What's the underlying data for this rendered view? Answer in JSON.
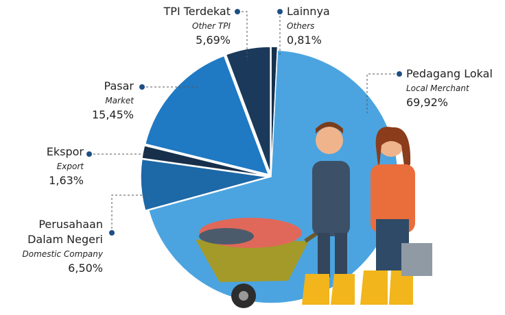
{
  "chart_data": {
    "type": "pie",
    "categories": [
      "Lainnya",
      "Pedagang Lokal",
      "Perusahaan Dalam Negeri",
      "Ekspor",
      "Pasar",
      "TPI Terdekat"
    ],
    "categories_en": [
      "Others",
      "Local Merchant",
      "Domestic Company",
      "Export",
      "Market",
      "Other TPI"
    ],
    "values": [
      0.81,
      69.92,
      6.5,
      1.63,
      15.45,
      5.69
    ],
    "value_labels": [
      "0,81%",
      "69,92%",
      "6,50%",
      "1,63%",
      "15,45%",
      "5,69%"
    ],
    "colors": [
      "#16304b",
      "#4ba4e0",
      "#1d68a6",
      "#172f4a",
      "#1f79c3",
      "#1b3a5b"
    ]
  }
}
